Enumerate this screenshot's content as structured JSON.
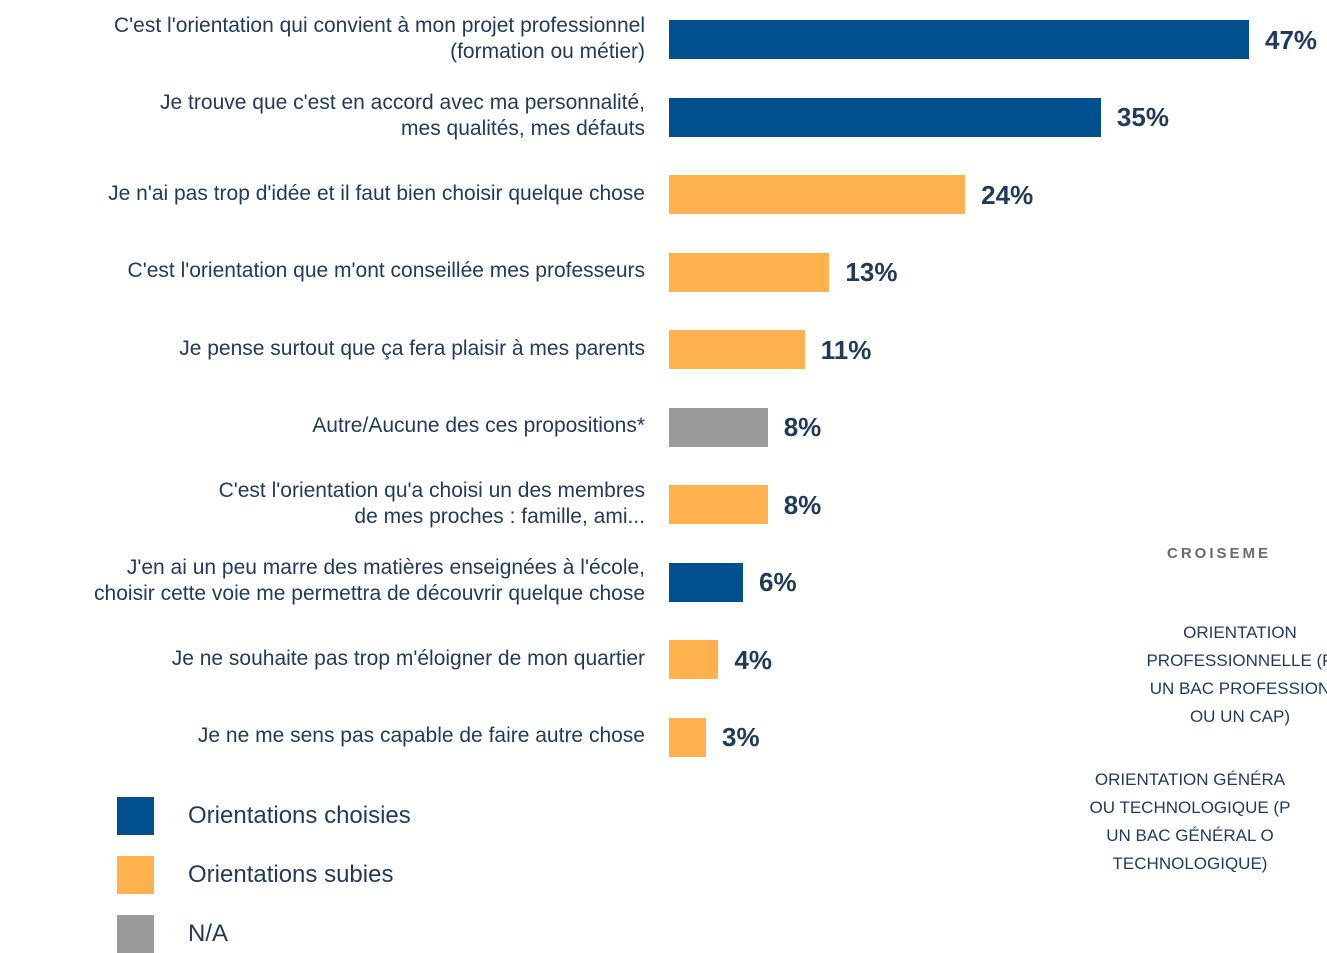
{
  "colors": {
    "choisie": "#00508f",
    "subie": "#ffb14e",
    "na": "#9b9b9b",
    "text": "#1f3a5c"
  },
  "chart_data": {
    "type": "bar",
    "orientation": "horizontal",
    "categories": [
      "C'est l'orientation qui convient à mon projet professionnel\n(formation ou métier)",
      "Je trouve que c'est en accord avec ma personnalité,\nmes qualités, mes défauts",
      "Je n'ai pas trop d'idée et il faut bien choisir quelque chose",
      "C'est l'orientation que m'ont conseillée mes professeurs",
      "Je pense surtout que ça fera plaisir à mes parents",
      "Autre/Aucune des ces propositions*",
      "C'est l'orientation qu'a choisi un des membres\nde mes proches : famille, ami...",
      "J'en ai un peu marre des matières enseignées à l'école,\nchoisir cette voie me permettra de découvrir quelque chose",
      "Je ne souhaite pas trop m'éloigner de mon quartier",
      "Je ne me sens pas capable de faire autre chose"
    ],
    "values": [
      47,
      35,
      24,
      13,
      11,
      8,
      8,
      6,
      4,
      3
    ],
    "value_labels": [
      "47%",
      "35%",
      "24%",
      "13%",
      "11%",
      "8%",
      "8%",
      "6%",
      "4%",
      "3%"
    ],
    "groups": [
      "choisie",
      "choisie",
      "subie",
      "subie",
      "subie",
      "na",
      "subie",
      "choisie",
      "subie",
      "subie"
    ],
    "xlim": [
      0,
      47
    ],
    "grid": false,
    "legend": [
      {
        "key": "choisie",
        "label": "Orientations choisies"
      },
      {
        "key": "subie",
        "label": "Orientations subies"
      },
      {
        "key": "na",
        "label": "N/A"
      }
    ],
    "legend_position": "bottom-left"
  },
  "side_panel": {
    "title": "CROISEME",
    "row1": "ORIENTATION\nPROFESSIONNELLE (P\nUN BAC PROFESSION\nOU UN CAP)",
    "row2": "ORIENTATION GÉNÉRA\nOU TECHNOLOGIQUE (P\nUN BAC GÉNÉRAL O\nTECHNOLOGIQUE)"
  }
}
